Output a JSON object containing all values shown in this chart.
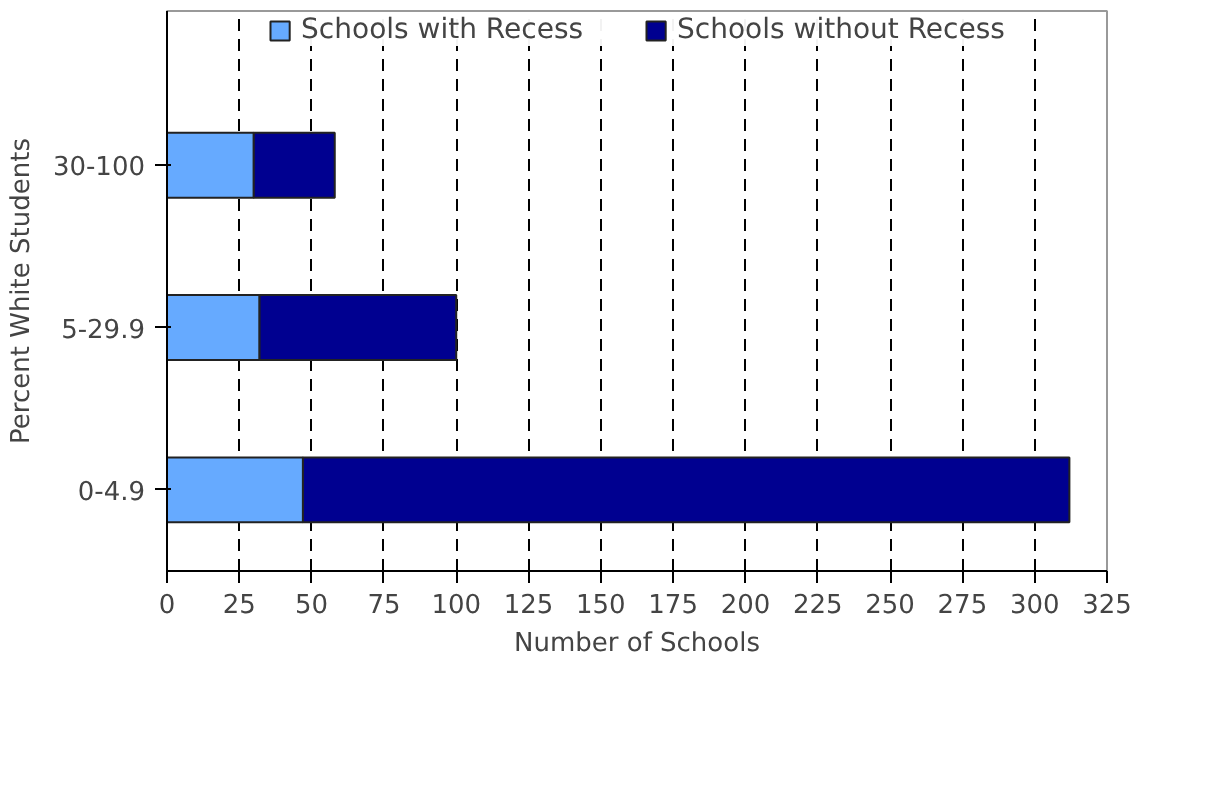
{
  "chart_data": {
    "type": "bar",
    "orientation": "horizontal",
    "stacked": true,
    "categories": [
      "30-100",
      "5-29.9",
      "0-4.9"
    ],
    "series": [
      {
        "name": "Schools with Recess",
        "color": "#66aaff",
        "values": [
          30,
          32,
          47
        ]
      },
      {
        "name": "Schools without Recess",
        "color": "#000090",
        "values": [
          28,
          68,
          265
        ]
      }
    ],
    "xlabel": "Number of Schools",
    "ylabel": "Percent White Students",
    "xlim": [
      0,
      325
    ],
    "xticks": [
      0,
      25,
      50,
      75,
      100,
      125,
      150,
      175,
      200,
      225,
      250,
      275,
      300,
      325
    ],
    "grid": "x",
    "legend": "top"
  }
}
